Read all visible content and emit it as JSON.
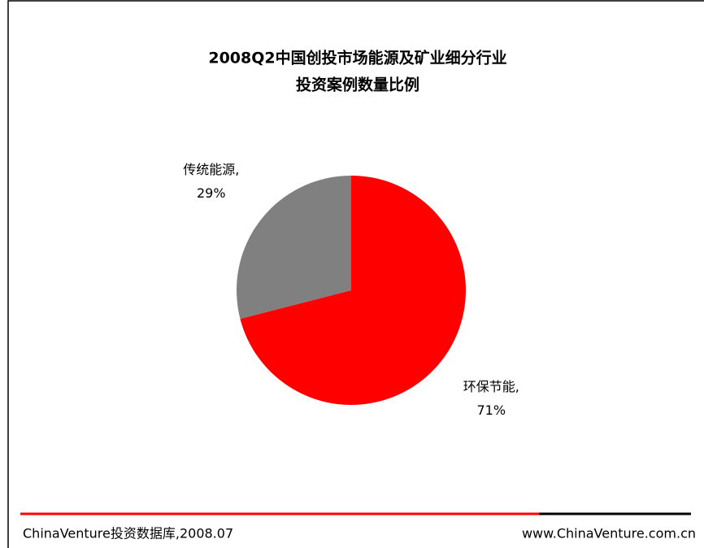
{
  "chart_data": {
    "type": "pie",
    "title": [
      "2008Q2中国创投市场能源及矿业细分行业",
      "投资案例数量比例"
    ],
    "categories": [
      "环保节能,",
      "传统能源,"
    ],
    "values": [
      71,
      29
    ],
    "value_labels": [
      "71%",
      "29%"
    ],
    "colors": [
      "#ff0000",
      "#808080"
    ],
    "source": "ChinaVenture投资数据库,2008.07",
    "website": "www.ChinaVenture.com.cn"
  }
}
